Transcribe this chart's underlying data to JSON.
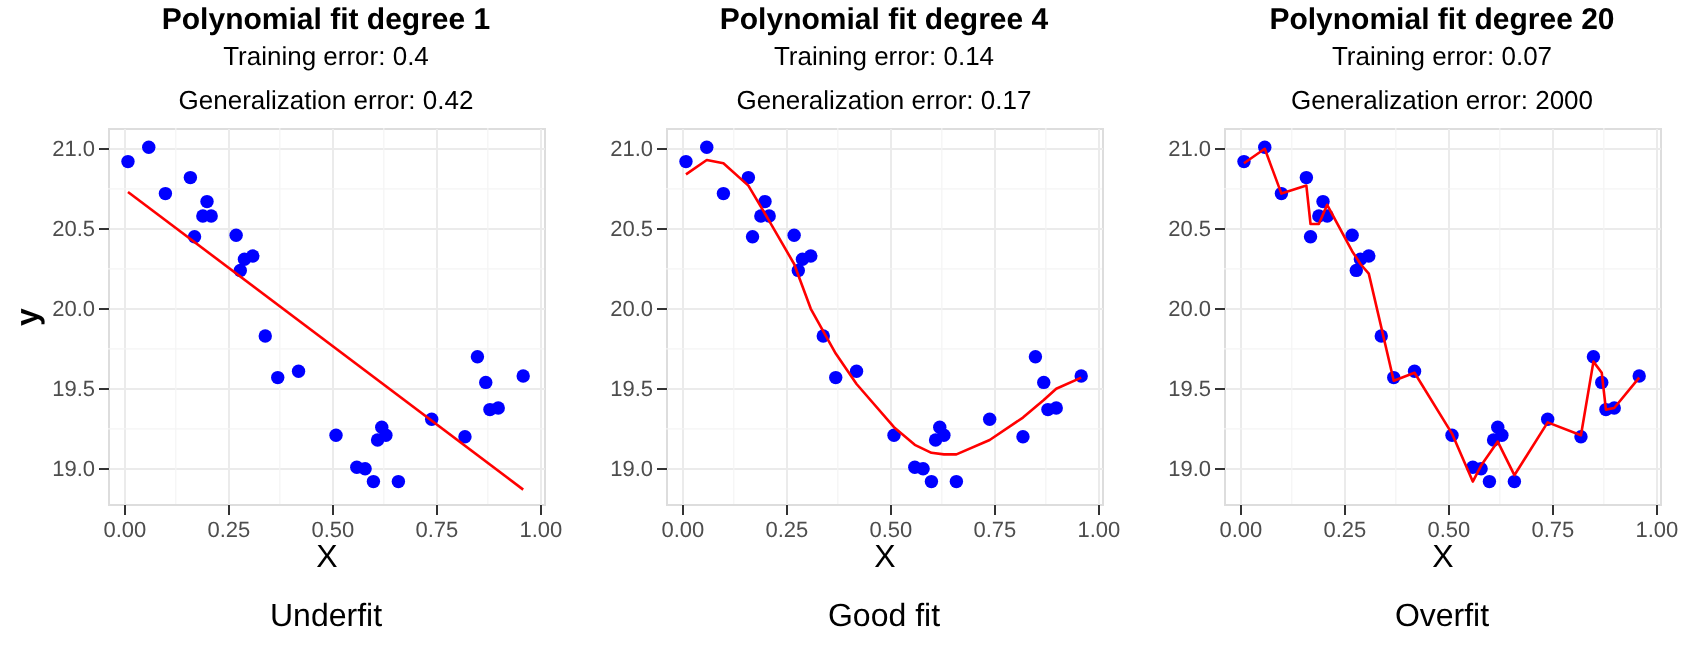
{
  "chart_data": [
    {
      "type": "scatter",
      "title": "Polynomial fit degree 1",
      "subtitle": "Training error: 0.4\nGeneralization error: 0.42",
      "xlabel": "X",
      "ylabel": "y",
      "annotations": [
        "Underfit"
      ],
      "xlim": [
        -0.038,
        1.01
      ],
      "ylim": [
        18.78,
        21.13
      ],
      "xticks": [
        {
          "value": 0,
          "label": "0.00"
        },
        {
          "value": 0.25,
          "label": "0.25"
        },
        {
          "value": 0.5,
          "label": "0.50"
        },
        {
          "value": 0.75,
          "label": "0.75"
        },
        {
          "value": 1,
          "label": "1.00"
        }
      ],
      "yticks": [
        {
          "value": 19,
          "label": "19.0"
        },
        {
          "value": 19.5,
          "label": "19.5"
        },
        {
          "value": 20,
          "label": "20.0"
        },
        {
          "value": 20.5,
          "label": "20.5"
        },
        {
          "value": 21,
          "label": "21.0"
        }
      ],
      "grid": true,
      "series": [
        {
          "color": "#0000ff",
          "marker": "circle",
          "x": [
            0.01,
            0.06,
            0.1,
            0.16,
            0.17,
            0.19,
            0.2,
            0.21,
            0.27,
            0.28,
            0.29,
            0.31,
            0.34,
            0.37,
            0.42,
            0.51,
            0.56,
            0.58,
            0.6,
            0.61,
            0.62,
            0.63,
            0.66,
            0.74,
            0.82,
            0.85,
            0.87,
            0.88,
            0.9,
            0.96
          ],
          "values": [
            20.92,
            21.01,
            20.72,
            20.82,
            20.45,
            20.58,
            20.67,
            20.58,
            20.46,
            20.24,
            20.31,
            20.33,
            19.83,
            19.57,
            19.61,
            19.21,
            19.01,
            19.0,
            18.92,
            19.18,
            19.26,
            19.21,
            18.92,
            19.31,
            19.2,
            19.7,
            19.54,
            19.37,
            19.38,
            19.58
          ]
        },
        {
          "type": "line",
          "color": "#ff0000",
          "line_style": "solid",
          "marker": "none",
          "x": [
            0.01,
            0.96
          ],
          "values": [
            20.73,
            18.87
          ]
        }
      ]
    },
    {
      "type": "scatter",
      "title": "Polynomial fit degree 4",
      "subtitle": "Training error: 0.14\nGeneralization error: 0.17",
      "xlabel": "X",
      "annotations": [
        "Good fit"
      ],
      "xlim": [
        -0.038,
        1.01
      ],
      "ylim": [
        18.78,
        21.13
      ],
      "xticks": [
        {
          "value": 0,
          "label": "0.00"
        },
        {
          "value": 0.25,
          "label": "0.25"
        },
        {
          "value": 0.5,
          "label": "0.50"
        },
        {
          "value": 0.75,
          "label": "0.75"
        },
        {
          "value": 1,
          "label": "1.00"
        }
      ],
      "yticks": [
        {
          "value": 19,
          "label": "19.0"
        },
        {
          "value": 19.5,
          "label": "19.5"
        },
        {
          "value": 20,
          "label": "20.0"
        },
        {
          "value": 20.5,
          "label": "20.5"
        },
        {
          "value": 21,
          "label": "21.0"
        }
      ],
      "grid": true,
      "series": [
        {
          "color": "#0000ff",
          "marker": "circle",
          "x": [
            0.01,
            0.06,
            0.1,
            0.16,
            0.17,
            0.19,
            0.2,
            0.21,
            0.27,
            0.28,
            0.29,
            0.31,
            0.34,
            0.37,
            0.42,
            0.51,
            0.56,
            0.58,
            0.6,
            0.61,
            0.62,
            0.63,
            0.66,
            0.74,
            0.82,
            0.85,
            0.87,
            0.88,
            0.9,
            0.96
          ],
          "values": [
            20.92,
            21.01,
            20.72,
            20.82,
            20.45,
            20.58,
            20.67,
            20.58,
            20.46,
            20.24,
            20.31,
            20.33,
            19.83,
            19.57,
            19.61,
            19.21,
            19.01,
            19.0,
            18.92,
            19.18,
            19.26,
            19.21,
            18.92,
            19.31,
            19.2,
            19.7,
            19.54,
            19.37,
            19.38,
            19.58
          ]
        },
        {
          "type": "line",
          "color": "#ff0000",
          "line_style": "solid",
          "marker": "none",
          "x": [
            0.01,
            0.06,
            0.1,
            0.16,
            0.21,
            0.27,
            0.31,
            0.37,
            0.42,
            0.51,
            0.56,
            0.6,
            0.63,
            0.66,
            0.74,
            0.82,
            0.87,
            0.9,
            0.96
          ],
          "values": [
            20.84,
            20.93,
            20.91,
            20.77,
            20.55,
            20.28,
            20.0,
            19.72,
            19.53,
            19.26,
            19.15,
            19.1,
            19.09,
            19.09,
            19.18,
            19.32,
            19.43,
            19.5,
            19.57
          ]
        }
      ]
    },
    {
      "type": "scatter",
      "title": "Polynomial fit degree 20",
      "subtitle": "Training error: 0.07\nGeneralization error: 2000",
      "xlabel": "X",
      "annotations": [
        "Overfit"
      ],
      "xlim": [
        -0.038,
        1.01
      ],
      "ylim": [
        18.78,
        21.13
      ],
      "xticks": [
        {
          "value": 0,
          "label": "0.00"
        },
        {
          "value": 0.25,
          "label": "0.25"
        },
        {
          "value": 0.5,
          "label": "0.50"
        },
        {
          "value": 0.75,
          "label": "0.75"
        },
        {
          "value": 1,
          "label": "1.00"
        }
      ],
      "yticks": [
        {
          "value": 19,
          "label": "19.0"
        },
        {
          "value": 19.5,
          "label": "19.5"
        },
        {
          "value": 20,
          "label": "20.0"
        },
        {
          "value": 20.5,
          "label": "20.5"
        },
        {
          "value": 21,
          "label": "21.0"
        }
      ],
      "grid": true,
      "series": [
        {
          "color": "#0000ff",
          "marker": "circle",
          "x": [
            0.01,
            0.06,
            0.1,
            0.16,
            0.17,
            0.19,
            0.2,
            0.21,
            0.27,
            0.28,
            0.29,
            0.31,
            0.34,
            0.37,
            0.42,
            0.51,
            0.56,
            0.58,
            0.6,
            0.61,
            0.62,
            0.63,
            0.66,
            0.74,
            0.82,
            0.85,
            0.87,
            0.88,
            0.9,
            0.96
          ],
          "values": [
            20.92,
            21.01,
            20.72,
            20.82,
            20.45,
            20.58,
            20.67,
            20.58,
            20.46,
            20.24,
            20.31,
            20.33,
            19.83,
            19.57,
            19.61,
            19.21,
            19.01,
            19.0,
            18.92,
            19.18,
            19.26,
            19.21,
            18.92,
            19.31,
            19.2,
            19.7,
            19.54,
            19.37,
            19.38,
            19.58
          ]
        },
        {
          "type": "line",
          "color": "#ff0000",
          "line_style": "solid",
          "marker": "none",
          "x": [
            0.01,
            0.06,
            0.1,
            0.16,
            0.17,
            0.19,
            0.21,
            0.27,
            0.29,
            0.31,
            0.37,
            0.42,
            0.51,
            0.56,
            0.58,
            0.62,
            0.66,
            0.74,
            0.82,
            0.85,
            0.87,
            0.88,
            0.9,
            0.96
          ],
          "values": [
            20.91,
            21.0,
            20.72,
            20.77,
            20.53,
            20.53,
            20.65,
            20.36,
            20.28,
            20.22,
            19.55,
            19.6,
            19.22,
            18.92,
            19.02,
            19.17,
            18.96,
            19.29,
            19.21,
            19.67,
            19.6,
            19.37,
            19.38,
            19.57
          ]
        }
      ]
    }
  ]
}
